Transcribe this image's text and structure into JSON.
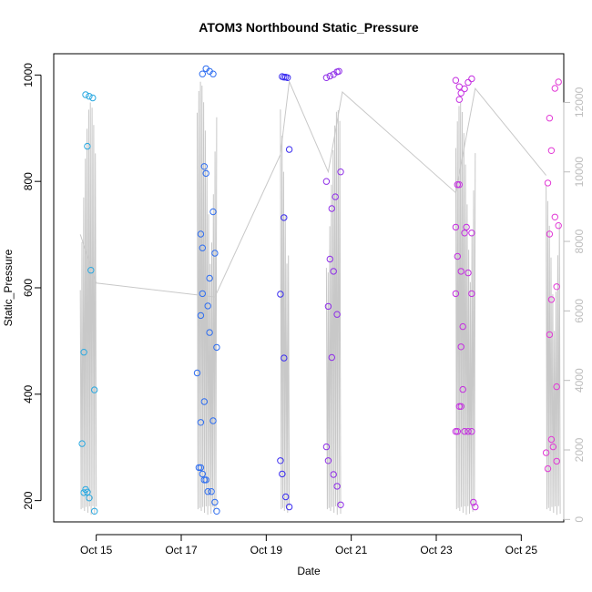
{
  "chart_data": {
    "type": "scatter",
    "title": "ATOM3 Northbound Static_Pressure",
    "xlabel": "Date",
    "ylabel": "Static_Pressure",
    "x_axis": {
      "type": "date",
      "range": [
        "2023-10-14",
        "2023-10-26"
      ],
      "ticks": [
        "Oct 15",
        "Oct 17",
        "Oct 19",
        "Oct 21",
        "Oct 23",
        "Oct 25"
      ],
      "tick_dates": [
        "2023-10-15",
        "2023-10-17",
        "2023-10-19",
        "2023-10-21",
        "2023-10-23",
        "2023-10-25"
      ]
    },
    "y_axis_left": {
      "range": [
        160,
        1040
      ],
      "ticks": [
        200,
        400,
        600,
        800,
        1000
      ]
    },
    "y_axis_right": {
      "range": [
        -70,
        13400
      ],
      "ticks": [
        0,
        2000,
        4000,
        6000,
        8000,
        10000,
        12000
      ],
      "color": "#bdbdbd"
    },
    "grid": false,
    "legend": "none",
    "points": [
      {
        "x": "2023-10-14 18:00",
        "y": 963,
        "color": "#29a8e0"
      },
      {
        "x": "2023-10-14 20:00",
        "y": 960,
        "color": "#29a8e0"
      },
      {
        "x": "2023-10-14 22:00",
        "y": 957,
        "color": "#29a8e0"
      },
      {
        "x": "2023-10-14 19:00",
        "y": 866,
        "color": "#29a8e0"
      },
      {
        "x": "2023-10-14 21:00",
        "y": 633,
        "color": "#29a8e0"
      },
      {
        "x": "2023-10-14 17:00",
        "y": 479,
        "color": "#29a8e0"
      },
      {
        "x": "2023-10-14 23:00",
        "y": 408,
        "color": "#29a8e0"
      },
      {
        "x": "2023-10-14 16:00",
        "y": 307,
        "color": "#29a8e0"
      },
      {
        "x": "2023-10-14 18:00",
        "y": 221,
        "color": "#29a8e0"
      },
      {
        "x": "2023-10-14 17:00",
        "y": 215,
        "color": "#29a8e0"
      },
      {
        "x": "2023-10-14 19:00",
        "y": 216,
        "color": "#29a8e0"
      },
      {
        "x": "2023-10-14 20:00",
        "y": 205,
        "color": "#29a8e0"
      },
      {
        "x": "2023-10-14 23:00",
        "y": 180,
        "color": "#29a8e0"
      },
      {
        "x": "2023-10-17 14:00",
        "y": 1012,
        "color": "#2f6ef0"
      },
      {
        "x": "2023-10-17 16:00",
        "y": 1007,
        "color": "#2f6ef0"
      },
      {
        "x": "2023-10-17 12:00",
        "y": 1002,
        "color": "#2f6ef0"
      },
      {
        "x": "2023-10-17 18:00",
        "y": 1002,
        "color": "#2f6ef0"
      },
      {
        "x": "2023-10-17 13:00",
        "y": 828,
        "color": "#2f6ef0"
      },
      {
        "x": "2023-10-17 14:00",
        "y": 815,
        "color": "#2f6ef0"
      },
      {
        "x": "2023-10-17 18:00",
        "y": 743,
        "color": "#2f6ef0"
      },
      {
        "x": "2023-10-17 11:00",
        "y": 701,
        "color": "#2f6ef0"
      },
      {
        "x": "2023-10-17 12:00",
        "y": 675,
        "color": "#2f6ef0"
      },
      {
        "x": "2023-10-17 19:00",
        "y": 665,
        "color": "#2f6ef0"
      },
      {
        "x": "2023-10-17 16:00",
        "y": 618,
        "color": "#2f6ef0"
      },
      {
        "x": "2023-10-17 12:00",
        "y": 589,
        "color": "#2f6ef0"
      },
      {
        "x": "2023-10-17 15:00",
        "y": 566,
        "color": "#2f6ef0"
      },
      {
        "x": "2023-10-17 11:00",
        "y": 548,
        "color": "#2f6ef0"
      },
      {
        "x": "2023-10-17 16:00",
        "y": 516,
        "color": "#2f6ef0"
      },
      {
        "x": "2023-10-17 20:00",
        "y": 488,
        "color": "#2f6ef0"
      },
      {
        "x": "2023-10-17 09:00",
        "y": 440,
        "color": "#2f6ef0"
      },
      {
        "x": "2023-10-17 13:00",
        "y": 386,
        "color": "#2f6ef0"
      },
      {
        "x": "2023-10-17 18:00",
        "y": 350,
        "color": "#2f6ef0"
      },
      {
        "x": "2023-10-17 11:00",
        "y": 347,
        "color": "#2f6ef0"
      },
      {
        "x": "2023-10-17 10:00",
        "y": 262,
        "color": "#2f6ef0"
      },
      {
        "x": "2023-10-17 11:00",
        "y": 262,
        "color": "#2f6ef0"
      },
      {
        "x": "2023-10-17 12:00",
        "y": 250,
        "color": "#2f6ef0"
      },
      {
        "x": "2023-10-17 13:00",
        "y": 239,
        "color": "#2f6ef0"
      },
      {
        "x": "2023-10-17 14:00",
        "y": 239,
        "color": "#2f6ef0"
      },
      {
        "x": "2023-10-17 15:00",
        "y": 217,
        "color": "#2f6ef0"
      },
      {
        "x": "2023-10-17 17:00",
        "y": 217,
        "color": "#2f6ef0"
      },
      {
        "x": "2023-10-17 19:00",
        "y": 197,
        "color": "#2f6ef0"
      },
      {
        "x": "2023-10-17 20:00",
        "y": 180,
        "color": "#2f6ef0"
      },
      {
        "x": "2023-10-19 09:00",
        "y": 997,
        "color": "#3b2df0"
      },
      {
        "x": "2023-10-19 10:00",
        "y": 996,
        "color": "#3b2df0"
      },
      {
        "x": "2023-10-19 11:00",
        "y": 996,
        "color": "#3b2df0"
      },
      {
        "x": "2023-10-19 12:00",
        "y": 995,
        "color": "#3b2df0"
      },
      {
        "x": "2023-10-19 13:00",
        "y": 860,
        "color": "#3b2df0"
      },
      {
        "x": "2023-10-19 10:00",
        "y": 732,
        "color": "#3b2df0"
      },
      {
        "x": "2023-10-19 08:00",
        "y": 588,
        "color": "#3b2df0"
      },
      {
        "x": "2023-10-19 10:00",
        "y": 468,
        "color": "#3b2df0"
      },
      {
        "x": "2023-10-19 08:00",
        "y": 275,
        "color": "#3b2df0"
      },
      {
        "x": "2023-10-19 09:00",
        "y": 250,
        "color": "#3b2df0"
      },
      {
        "x": "2023-10-19 11:00",
        "y": 207,
        "color": "#3b2df0"
      },
      {
        "x": "2023-10-19 13:00",
        "y": 188,
        "color": "#3b2df0"
      },
      {
        "x": "2023-10-20 10:00",
        "y": 995,
        "color": "#8f2ee8"
      },
      {
        "x": "2023-10-20 12:00",
        "y": 998,
        "color": "#8f2ee8"
      },
      {
        "x": "2023-10-20 14:00",
        "y": 1001,
        "color": "#8f2ee8"
      },
      {
        "x": "2023-10-20 16:00",
        "y": 1006,
        "color": "#8f2ee8"
      },
      {
        "x": "2023-10-20 17:00",
        "y": 1007,
        "color": "#8f2ee8"
      },
      {
        "x": "2023-10-20 18:00",
        "y": 818,
        "color": "#8f2ee8"
      },
      {
        "x": "2023-10-20 10:00",
        "y": 800,
        "color": "#8f2ee8"
      },
      {
        "x": "2023-10-20 15:00",
        "y": 771,
        "color": "#8f2ee8"
      },
      {
        "x": "2023-10-20 13:00",
        "y": 749,
        "color": "#8f2ee8"
      },
      {
        "x": "2023-10-20 12:00",
        "y": 654,
        "color": "#8f2ee8"
      },
      {
        "x": "2023-10-20 14:00",
        "y": 631,
        "color": "#8f2ee8"
      },
      {
        "x": "2023-10-20 11:00",
        "y": 565,
        "color": "#8f2ee8"
      },
      {
        "x": "2023-10-20 16:00",
        "y": 550,
        "color": "#8f2ee8"
      },
      {
        "x": "2023-10-20 13:00",
        "y": 469,
        "color": "#8f2ee8"
      },
      {
        "x": "2023-10-20 10:00",
        "y": 301,
        "color": "#8f2ee8"
      },
      {
        "x": "2023-10-20 11:00",
        "y": 275,
        "color": "#8f2ee8"
      },
      {
        "x": "2023-10-20 14:00",
        "y": 249,
        "color": "#8f2ee8"
      },
      {
        "x": "2023-10-20 16:00",
        "y": 227,
        "color": "#8f2ee8"
      },
      {
        "x": "2023-10-20 18:00",
        "y": 192,
        "color": "#8f2ee8"
      },
      {
        "x": "2023-10-23 11:00",
        "y": 990,
        "color": "#c42ee0"
      },
      {
        "x": "2023-10-23 13:00",
        "y": 978,
        "color": "#c42ee0"
      },
      {
        "x": "2023-10-23 16:00",
        "y": 974,
        "color": "#c42ee0"
      },
      {
        "x": "2023-10-23 14:00",
        "y": 966,
        "color": "#c42ee0"
      },
      {
        "x": "2023-10-23 13:00",
        "y": 954,
        "color": "#c42ee0"
      },
      {
        "x": "2023-10-23 18:00",
        "y": 986,
        "color": "#c42ee0"
      },
      {
        "x": "2023-10-23 20:00",
        "y": 993,
        "color": "#c42ee0"
      },
      {
        "x": "2023-10-23 12:00",
        "y": 794,
        "color": "#c42ee0"
      },
      {
        "x": "2023-10-23 13:00",
        "y": 794,
        "color": "#c42ee0"
      },
      {
        "x": "2023-10-23 11:00",
        "y": 714,
        "color": "#c42ee0"
      },
      {
        "x": "2023-10-23 17:00",
        "y": 714,
        "color": "#c42ee0"
      },
      {
        "x": "2023-10-23 16:00",
        "y": 703,
        "color": "#c42ee0"
      },
      {
        "x": "2023-10-23 20:00",
        "y": 703,
        "color": "#c42ee0"
      },
      {
        "x": "2023-10-23 12:00",
        "y": 659,
        "color": "#c42ee0"
      },
      {
        "x": "2023-10-23 14:00",
        "y": 631,
        "color": "#c42ee0"
      },
      {
        "x": "2023-10-23 18:00",
        "y": 628,
        "color": "#c42ee0"
      },
      {
        "x": "2023-10-23 11:00",
        "y": 589,
        "color": "#c42ee0"
      },
      {
        "x": "2023-10-23 20:00",
        "y": 589,
        "color": "#c42ee0"
      },
      {
        "x": "2023-10-23 15:00",
        "y": 527,
        "color": "#c42ee0"
      },
      {
        "x": "2023-10-23 14:00",
        "y": 489,
        "color": "#c42ee0"
      },
      {
        "x": "2023-10-23 15:00",
        "y": 409,
        "color": "#c42ee0"
      },
      {
        "x": "2023-10-23 13:00",
        "y": 377,
        "color": "#c42ee0"
      },
      {
        "x": "2023-10-23 14:00",
        "y": 377,
        "color": "#c42ee0"
      },
      {
        "x": "2023-10-23 11:00",
        "y": 330,
        "color": "#c42ee0"
      },
      {
        "x": "2023-10-23 12:00",
        "y": 330,
        "color": "#c42ee0"
      },
      {
        "x": "2023-10-23 16:00",
        "y": 330,
        "color": "#c42ee0"
      },
      {
        "x": "2023-10-23 18:00",
        "y": 330,
        "color": "#c42ee0"
      },
      {
        "x": "2023-10-23 20:00",
        "y": 330,
        "color": "#c42ee0"
      },
      {
        "x": "2023-10-23 21:00",
        "y": 197,
        "color": "#c42ee0"
      },
      {
        "x": "2023-10-23 22:00",
        "y": 188,
        "color": "#c42ee0"
      },
      {
        "x": "2023-10-25 21:00",
        "y": 987,
        "color": "#e23ad6"
      },
      {
        "x": "2023-10-25 19:00",
        "y": 975,
        "color": "#e23ad6"
      },
      {
        "x": "2023-10-25 16:00",
        "y": 919,
        "color": "#e23ad6"
      },
      {
        "x": "2023-10-25 17:00",
        "y": 858,
        "color": "#e23ad6"
      },
      {
        "x": "2023-10-25 15:00",
        "y": 797,
        "color": "#e23ad6"
      },
      {
        "x": "2023-10-25 19:00",
        "y": 733,
        "color": "#e23ad6"
      },
      {
        "x": "2023-10-25 21:00",
        "y": 717,
        "color": "#e23ad6"
      },
      {
        "x": "2023-10-25 16:00",
        "y": 701,
        "color": "#e23ad6"
      },
      {
        "x": "2023-10-25 20:00",
        "y": 602,
        "color": "#e23ad6"
      },
      {
        "x": "2023-10-25 17:00",
        "y": 578,
        "color": "#e23ad6"
      },
      {
        "x": "2023-10-25 16:00",
        "y": 512,
        "color": "#e23ad6"
      },
      {
        "x": "2023-10-25 20:00",
        "y": 414,
        "color": "#e23ad6"
      },
      {
        "x": "2023-10-25 17:00",
        "y": 315,
        "color": "#e23ad6"
      },
      {
        "x": "2023-10-25 18:00",
        "y": 301,
        "color": "#e23ad6"
      },
      {
        "x": "2023-10-25 14:00",
        "y": 290,
        "color": "#e23ad6"
      },
      {
        "x": "2023-10-25 20:00",
        "y": 274,
        "color": "#e23ad6"
      },
      {
        "x": "2023-10-25 15:00",
        "y": 260,
        "color": "#e23ad6"
      }
    ],
    "line_series": {
      "axis": "right",
      "color": "#c8c8c8",
      "bursts": [
        {
          "start": "2023-10-14 15:00",
          "end": "2023-10-15 00:00",
          "top": 12000
        },
        {
          "start": "2023-10-17 09:00",
          "end": "2023-10-17 20:00",
          "top": 12600
        },
        {
          "start": "2023-10-19 08:00",
          "end": "2023-10-19 13:00",
          "top": 12300
        },
        {
          "start": "2023-10-20 10:00",
          "end": "2023-10-20 18:00",
          "top": 11800
        },
        {
          "start": "2023-10-23 11:00",
          "end": "2023-10-23 22:00",
          "top": 12000
        },
        {
          "start": "2023-10-25 14:00",
          "end": "2023-10-25 22:00",
          "top": 9800
        }
      ],
      "envelope": [
        {
          "x": "2023-10-14 15:00",
          "y": 8200
        },
        {
          "x": "2023-10-15 00:00",
          "y": 6800
        },
        {
          "x": "2023-10-17 19:00",
          "y": 6400
        },
        {
          "x": "2023-10-19 08:00",
          "y": 10500
        },
        {
          "x": "2023-10-19 13:00",
          "y": 12600
        },
        {
          "x": "2023-10-20 11:00",
          "y": 10000
        },
        {
          "x": "2023-10-20 19:00",
          "y": 12300
        },
        {
          "x": "2023-10-23 11:00",
          "y": 9400
        },
        {
          "x": "2023-10-23 22:00",
          "y": 12400
        },
        {
          "x": "2023-10-25 14:00",
          "y": 9900
        }
      ]
    }
  }
}
